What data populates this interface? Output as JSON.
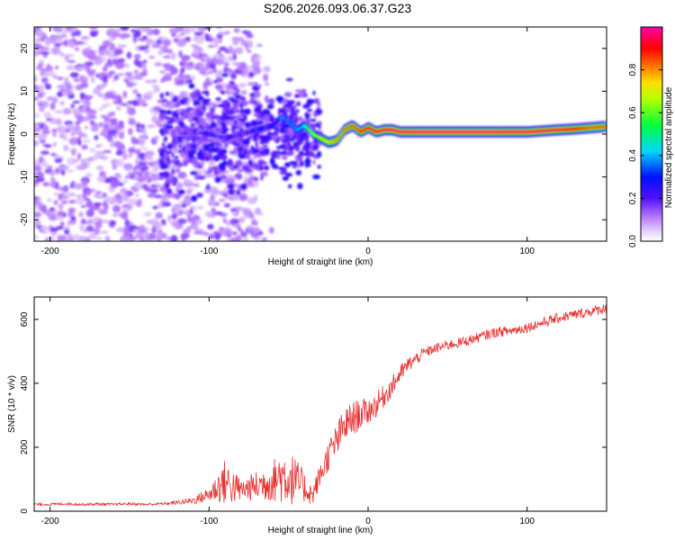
{
  "title": "S206.2026.093.06.37.G23",
  "chart_data": [
    {
      "type": "heatmap",
      "title": "S206.2026.093.06.37.G23",
      "xlabel": "Height of straight line (km)",
      "ylabel": "Frequency (Hz)",
      "xlim": [
        -210,
        150
      ],
      "ylim": [
        -25,
        25
      ],
      "xticks": [
        -200,
        -100,
        0,
        100
      ],
      "yticks": [
        -20,
        -10,
        0,
        10,
        20
      ],
      "grid": false,
      "ridge": {
        "x": [
          -120,
          -110,
          -100,
          -90,
          -80,
          -70,
          -60,
          -55,
          -50,
          -45,
          -40,
          -35,
          -30,
          -25,
          -20,
          -15,
          -10,
          -5,
          0,
          5,
          10,
          15,
          20,
          30,
          40,
          60,
          80,
          100,
          120,
          130,
          140,
          150
        ],
        "frequency": [
          0,
          0.5,
          0,
          -1,
          0,
          1,
          2,
          4,
          3,
          1,
          2,
          0,
          -1,
          -2,
          -1.5,
          1,
          2,
          0.5,
          1.5,
          0.5,
          1,
          1,
          0.5,
          0.5,
          0.5,
          0.5,
          0.5,
          0.5,
          1.0,
          1.2,
          1.5,
          1.8
        ],
        "amplitude": [
          0.15,
          0.2,
          0.25,
          0.25,
          0.2,
          0.25,
          0.3,
          0.35,
          0.4,
          0.45,
          0.55,
          0.65,
          0.7,
          0.75,
          0.8,
          0.85,
          0.85,
          0.9,
          0.92,
          0.93,
          0.95,
          0.96,
          0.97,
          0.98,
          0.98,
          0.98,
          0.98,
          0.96,
          0.95,
          0.9,
          0.85,
          0.85
        ]
      },
      "colorbar": {
        "label": "Normalized spectral amplitude",
        "range": [
          0.0,
          1.0
        ],
        "ticks": [
          "0.0",
          "0.2",
          "0.4",
          "0.6",
          "0.8"
        ],
        "tick_values": [
          0.0,
          0.2,
          0.4,
          0.6,
          0.8
        ],
        "colormap": "rainbow (light violet → violet → blue → cyan → green → yellow → orange → red → magenta)"
      }
    },
    {
      "type": "line",
      "xlabel": "Height of straight line (km)",
      "ylabel": "SNR (10 * v/v)",
      "xlim": [
        -210,
        150
      ],
      "ylim": [
        0,
        670
      ],
      "xticks": [
        -200,
        -100,
        0,
        100
      ],
      "yticks": [
        0,
        200,
        400,
        600
      ],
      "grid": false,
      "series": [
        {
          "name": "SNR",
          "color": "#e83030",
          "x": [
            -210,
            -200,
            -190,
            -180,
            -170,
            -160,
            -150,
            -140,
            -130,
            -120,
            -110,
            -100,
            -95,
            -90,
            -85,
            -80,
            -75,
            -70,
            -65,
            -60,
            -55,
            -50,
            -45,
            -40,
            -35,
            -30,
            -25,
            -20,
            -15,
            -10,
            -5,
            0,
            5,
            10,
            15,
            20,
            25,
            30,
            35,
            40,
            50,
            60,
            70,
            80,
            90,
            100,
            110,
            120,
            130,
            140,
            150
          ],
          "values": [
            20,
            20,
            22,
            20,
            21,
            20,
            22,
            20,
            22,
            25,
            30,
            45,
            60,
            70,
            60,
            55,
            60,
            65,
            70,
            75,
            85,
            80,
            70,
            60,
            40,
            100,
            160,
            200,
            250,
            270,
            290,
            300,
            320,
            350,
            380,
            420,
            450,
            470,
            490,
            500,
            515,
            525,
            540,
            555,
            560,
            570,
            585,
            600,
            610,
            620,
            630
          ],
          "noise": [
            5,
            5,
            5,
            5,
            5,
            5,
            5,
            5,
            5,
            8,
            15,
            30,
            60,
            90,
            70,
            45,
            50,
            60,
            70,
            80,
            110,
            110,
            90,
            60,
            40,
            50,
            60,
            70,
            70,
            70,
            60,
            50,
            50,
            45,
            40,
            35,
            30,
            25,
            22,
            20,
            20,
            20,
            20,
            20,
            20,
            20,
            20,
            20,
            20,
            20,
            20
          ]
        }
      ]
    }
  ]
}
